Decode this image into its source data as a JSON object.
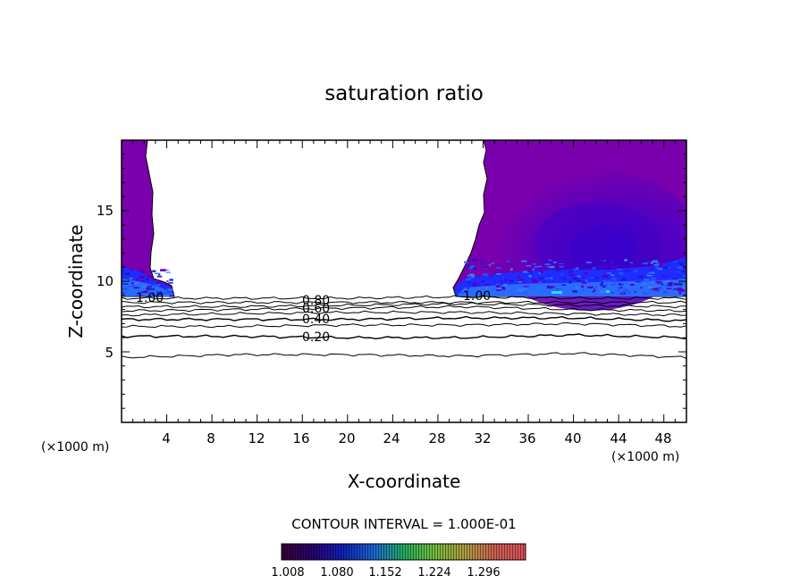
{
  "chart_data": {
    "type": "contour",
    "title": "saturation ratio",
    "xlabel": "X-coordinate",
    "ylabel": "Z-coordinate",
    "x_unit_label": "(×1000 m)",
    "z_unit_label": "(×1000 m)",
    "xlim": [
      0,
      50
    ],
    "ylim": [
      0,
      20
    ],
    "x_ticks": [
      4,
      8,
      12,
      16,
      20,
      24,
      28,
      32,
      36,
      40,
      44,
      48
    ],
    "y_ticks": [
      5,
      10,
      15
    ],
    "contour_interval_text": "CONTOUR INTERVAL = 1.000E-01",
    "contour_labels": [
      {
        "text": "1.00",
        "x": 3.0,
        "z": 8.7
      },
      {
        "text": "1.00",
        "x": 31.8,
        "z": 8.9
      },
      {
        "text": "0.80",
        "x": 17.2,
        "z": 8.5
      },
      {
        "text": "0.60",
        "x": 17.2,
        "z": 8.0
      },
      {
        "text": "0.40",
        "x": 17.2,
        "z": 7.3
      },
      {
        "text": "0.20",
        "x": 17.2,
        "z": 6.0
      }
    ],
    "contour_lines": [
      {
        "level": 0.9,
        "z": [
          8.8,
          8.8,
          8.8,
          8.9,
          8.8,
          8.8
        ]
      },
      {
        "level": 0.8,
        "z": [
          8.5,
          8.5,
          8.5,
          8.5,
          8.5,
          8.5
        ]
      },
      {
        "level": 0.7,
        "z": [
          8.2,
          8.2,
          8.3,
          8.4,
          8.3,
          8.2
        ]
      },
      {
        "level": 0.6,
        "z": [
          7.9,
          8.0,
          8.1,
          8.2,
          8.0,
          7.9
        ]
      },
      {
        "level": 0.5,
        "z": [
          7.6,
          7.7,
          7.8,
          7.8,
          7.7,
          7.6
        ]
      },
      {
        "level": 0.4,
        "z": [
          7.3,
          7.3,
          7.3,
          7.4,
          7.4,
          7.2
        ]
      },
      {
        "level": 0.3,
        "z": [
          6.8,
          6.8,
          6.9,
          6.9,
          7.0,
          6.8
        ]
      },
      {
        "level": 0.2,
        "z": [
          6.1,
          6.1,
          6.0,
          6.0,
          6.2,
          6.0
        ]
      },
      {
        "level": 0.1,
        "z": [
          4.6,
          4.8,
          4.8,
          4.7,
          4.9,
          4.6
        ]
      }
    ],
    "contour_x": [
      0,
      10,
      20,
      30,
      40,
      50
    ],
    "colorbar": {
      "ticks": [
        "1.008",
        "1.080",
        "1.152",
        "1.224",
        "1.296"
      ]
    },
    "colors": {
      "purple": "#7a00ad",
      "deep_purple": "#6a00b6",
      "indigo": "#4c00c4",
      "blue": "#1f2bff",
      "bright_blue": "#2a6bff",
      "cyan_accent": "#27e0d2"
    }
  }
}
